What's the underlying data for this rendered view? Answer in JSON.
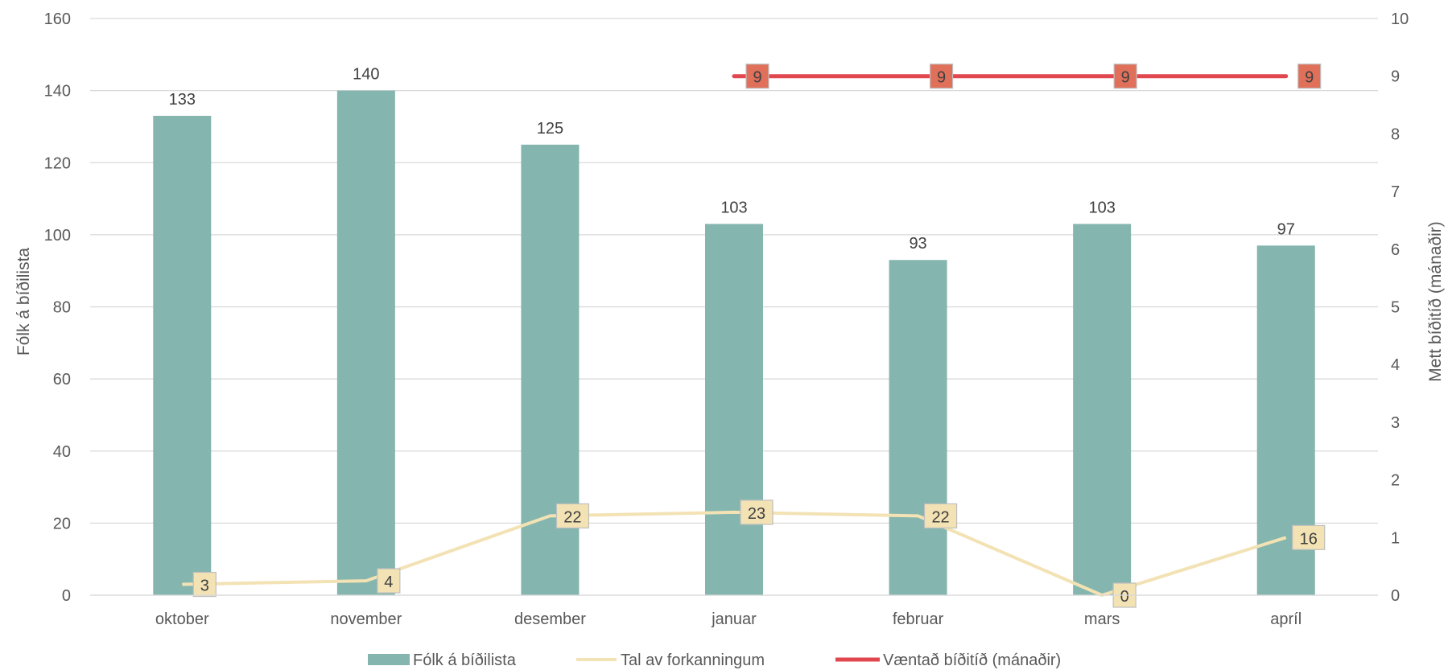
{
  "chart_data": {
    "type": "bar",
    "categories": [
      "oktober",
      "november",
      "desember",
      "januar",
      "februar",
      "mars",
      "apríl"
    ],
    "series": [
      {
        "name": "Fólk á bíðilista",
        "type": "bar",
        "axis": "left",
        "values": [
          133,
          140,
          125,
          103,
          93,
          103,
          97
        ],
        "data_labels": [
          "133",
          "140",
          "125",
          "103",
          "93",
          "103",
          "97"
        ],
        "color": "#84B5AE"
      },
      {
        "name": "Tal av forkanningum",
        "type": "line",
        "axis": "left",
        "values": [
          3,
          4,
          22,
          23,
          22,
          0,
          16
        ],
        "data_labels": [
          "3",
          "4",
          "22",
          "23",
          "22",
          "0",
          "16"
        ],
        "color": "#F2E2B4"
      },
      {
        "name": "Væntað bíðitíð (mánaðir)",
        "type": "line",
        "axis": "right",
        "values": [
          null,
          null,
          null,
          9,
          9,
          9,
          9
        ],
        "data_labels": [
          "9",
          "9",
          "9",
          "9"
        ],
        "color": "#E0474F",
        "label_fill": "#E0705A"
      }
    ],
    "ylabel": "Fólk á bíðilista",
    "y2label": "Mett bíðitíð (mánaðir)",
    "ylim": [
      0,
      160
    ],
    "yticks": [
      "0",
      "20",
      "40",
      "60",
      "80",
      "100",
      "120",
      "140",
      "160"
    ],
    "y2lim": [
      0,
      10
    ],
    "y2ticks": [
      "0",
      "1",
      "2",
      "3",
      "4",
      "5",
      "6",
      "7",
      "8",
      "9",
      "10"
    ],
    "grid": true,
    "legend_position": "bottom"
  }
}
